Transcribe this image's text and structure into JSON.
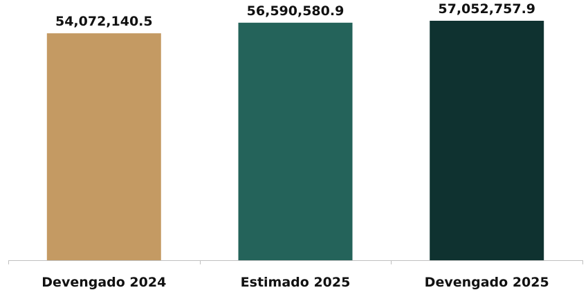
{
  "chart_data": {
    "type": "bar",
    "title": "",
    "xlabel": "",
    "ylabel": "",
    "categories": [
      "Devengado 2024",
      "Estimado 2025",
      "Devengado 2025"
    ],
    "values": [
      54072140.5,
      56590580.9,
      57052757.9
    ],
    "value_labels": [
      "54,072,140.5",
      "56,590,580.9",
      "57,052,757.9"
    ],
    "colors": [
      "#c49a63",
      "#24635a",
      "#0f3230"
    ],
    "ylim": [
      0,
      62000000
    ],
    "grid": false,
    "legend": "none"
  }
}
